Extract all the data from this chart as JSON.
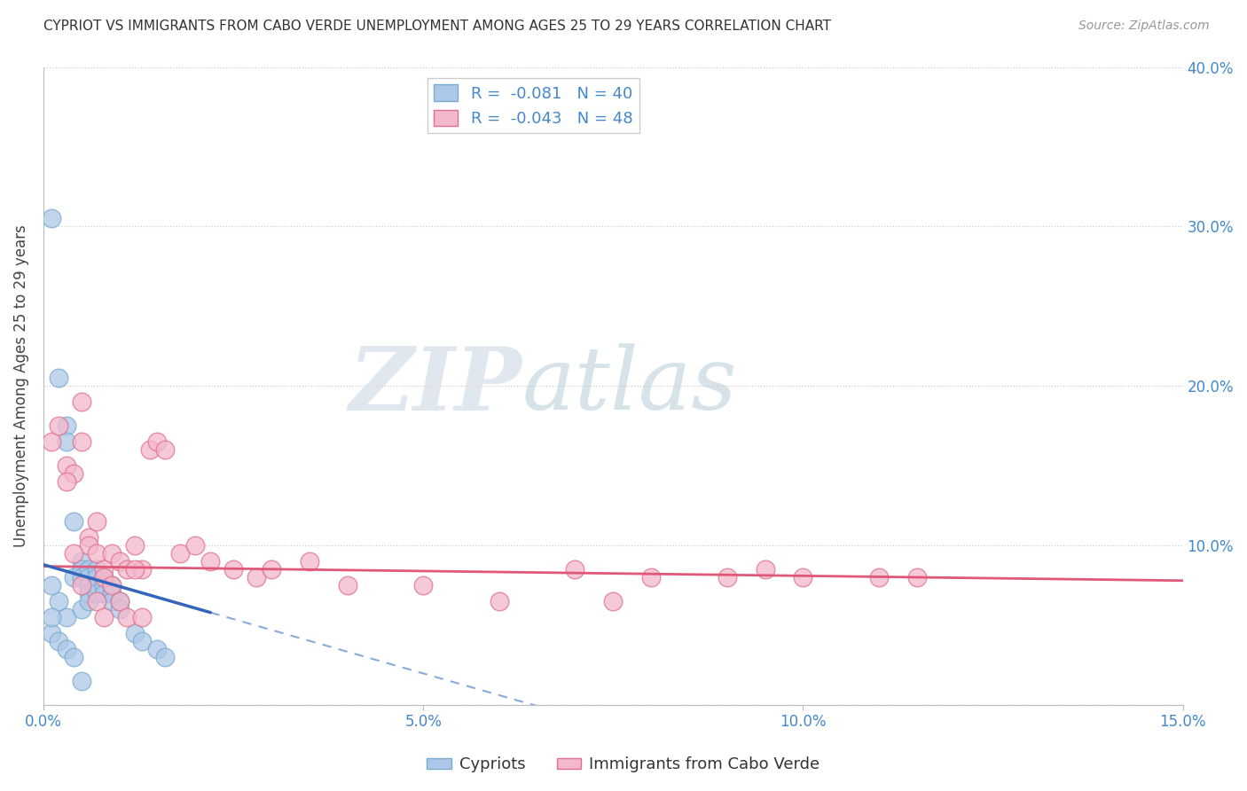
{
  "title": "CYPRIOT VS IMMIGRANTS FROM CABO VERDE UNEMPLOYMENT AMONG AGES 25 TO 29 YEARS CORRELATION CHART",
  "source": "Source: ZipAtlas.com",
  "ylabel": "Unemployment Among Ages 25 to 29 years",
  "xlim": [
    0.0,
    0.15
  ],
  "ylim": [
    0.0,
    0.4
  ],
  "cypriot_color": "#adc8e8",
  "cypriot_edge_color": "#7aaad0",
  "cabo_verde_color": "#f4b8cc",
  "cabo_verde_edge_color": "#e0708c",
  "trendline_cypriot_solid_color": "#3366bb",
  "trendline_cypriot_dash_color": "#88aadd",
  "trendline_cabo_verde_color": "#e05878",
  "watermark_zip": "ZIP",
  "watermark_atlas": "atlas",
  "cypriot_x": [
    0.001,
    0.001,
    0.002,
    0.002,
    0.002,
    0.003,
    0.003,
    0.003,
    0.003,
    0.004,
    0.004,
    0.004,
    0.005,
    0.005,
    0.005,
    0.005,
    0.005,
    0.006,
    0.006,
    0.006,
    0.006,
    0.006,
    0.007,
    0.007,
    0.007,
    0.007,
    0.008,
    0.008,
    0.008,
    0.009,
    0.009,
    0.009,
    0.01,
    0.01,
    0.012,
    0.013,
    0.015,
    0.016,
    0.001,
    0.001
  ],
  "cypriot_y": [
    0.305,
    0.045,
    0.205,
    0.065,
    0.04,
    0.175,
    0.165,
    0.055,
    0.035,
    0.115,
    0.08,
    0.03,
    0.09,
    0.085,
    0.08,
    0.06,
    0.015,
    0.085,
    0.08,
    0.075,
    0.07,
    0.065,
    0.085,
    0.08,
    0.075,
    0.07,
    0.08,
    0.075,
    0.07,
    0.075,
    0.07,
    0.065,
    0.065,
    0.06,
    0.045,
    0.04,
    0.035,
    0.03,
    0.075,
    0.055
  ],
  "cabo_verde_x": [
    0.001,
    0.002,
    0.003,
    0.004,
    0.005,
    0.005,
    0.006,
    0.006,
    0.007,
    0.007,
    0.008,
    0.008,
    0.009,
    0.01,
    0.011,
    0.012,
    0.013,
    0.014,
    0.015,
    0.016,
    0.018,
    0.02,
    0.022,
    0.025,
    0.028,
    0.03,
    0.035,
    0.04,
    0.05,
    0.06,
    0.07,
    0.075,
    0.08,
    0.09,
    0.095,
    0.1,
    0.11,
    0.115,
    0.003,
    0.004,
    0.005,
    0.007,
    0.008,
    0.009,
    0.01,
    0.011,
    0.012,
    0.013
  ],
  "cabo_verde_y": [
    0.165,
    0.175,
    0.15,
    0.145,
    0.19,
    0.165,
    0.105,
    0.1,
    0.115,
    0.095,
    0.085,
    0.08,
    0.095,
    0.09,
    0.085,
    0.1,
    0.085,
    0.16,
    0.165,
    0.16,
    0.095,
    0.1,
    0.09,
    0.085,
    0.08,
    0.085,
    0.09,
    0.075,
    0.075,
    0.065,
    0.085,
    0.065,
    0.08,
    0.08,
    0.085,
    0.08,
    0.08,
    0.08,
    0.14,
    0.095,
    0.075,
    0.065,
    0.055,
    0.075,
    0.065,
    0.055,
    0.085,
    0.055
  ],
  "trend_cy_x0": 0.0,
  "trend_cy_y0": 0.088,
  "trend_cy_x1": 0.022,
  "trend_cy_y1": 0.058,
  "trend_cv_x0": 0.0,
  "trend_cv_y0": 0.087,
  "trend_cv_x1": 0.15,
  "trend_cv_y1": 0.078
}
